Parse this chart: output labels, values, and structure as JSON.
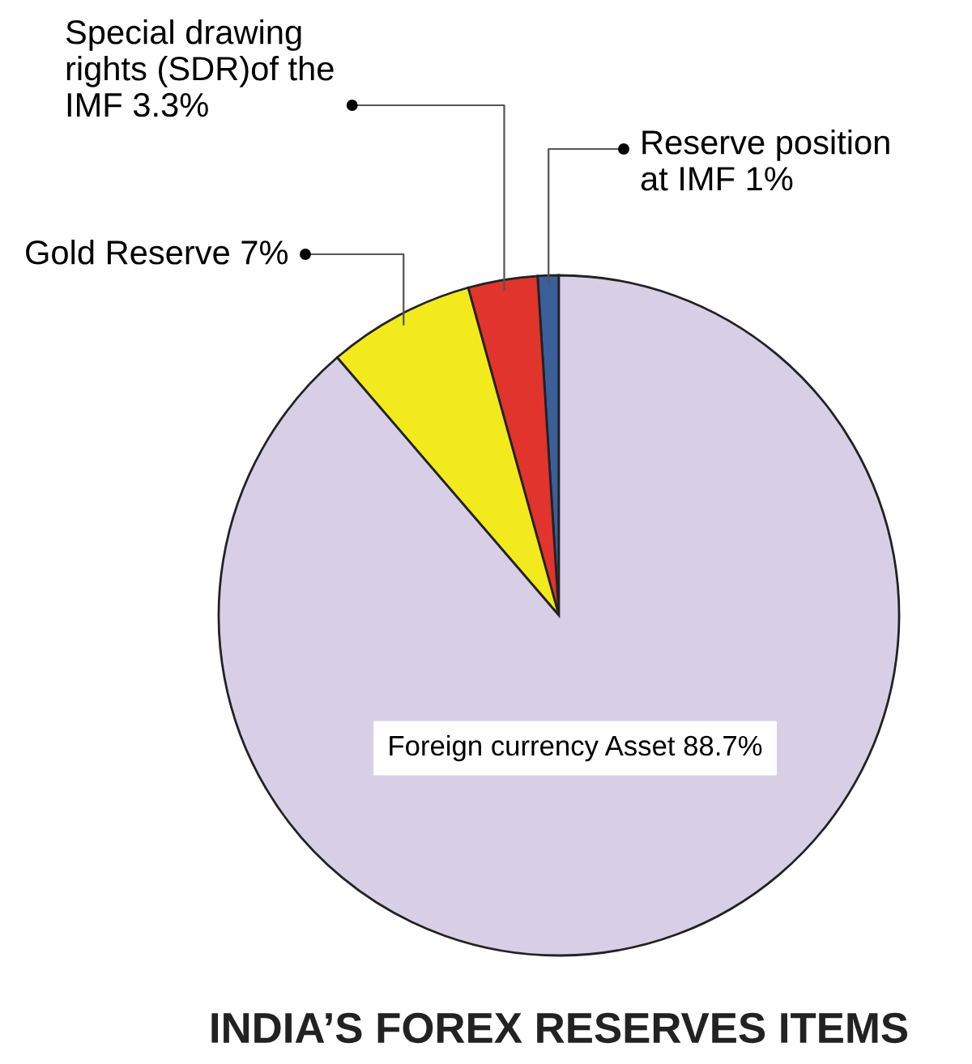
{
  "chart_data": {
    "type": "pie",
    "title": "INDIA’S FOREX RESERVES ITEMS",
    "categories": [
      "Reserve position\nat IMF",
      "Special drawing\nrights (SDR)of the\nIMF",
      "Gold Reserve",
      "Foreign currency Asset"
    ],
    "values": [
      1,
      3.3,
      7,
      88.7
    ],
    "value_labels": [
      "1%",
      "3.3%",
      "7%",
      "88.7%"
    ],
    "colors": [
      "#3a5f9a",
      "#e0342c",
      "#f2ea1c",
      "#d8cfe6"
    ],
    "legend": false
  }
}
